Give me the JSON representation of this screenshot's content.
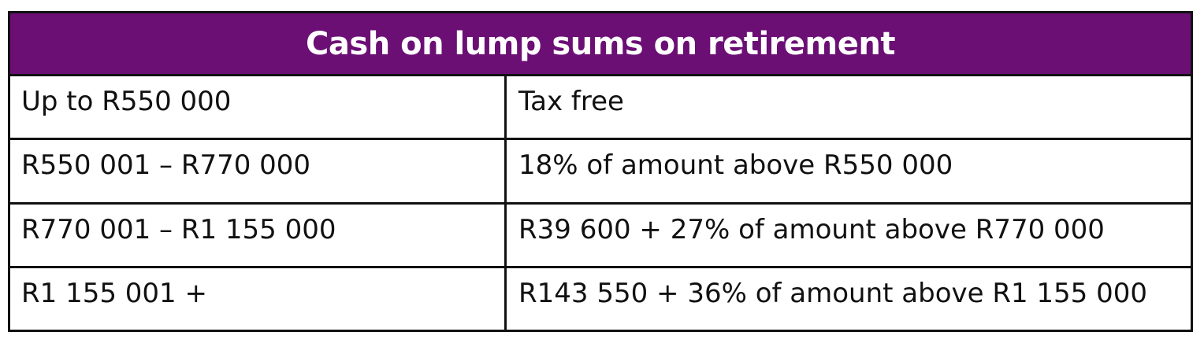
{
  "table": {
    "title": "Cash on lump sums on retirement",
    "header_color": "#6b0f75",
    "rows": [
      {
        "range": "Up to R550 000",
        "tax": "Tax free"
      },
      {
        "range": "R550 001 – R770 000",
        "tax": "18% of amount above R550 000"
      },
      {
        "range": "R770 001 – R1 155 000",
        "tax": "R39 600 + 27% of amount above R770 000"
      },
      {
        "range": "R1 155 001 +",
        "tax": "R143 550 + 36% of amount above R1 155 000"
      }
    ]
  }
}
